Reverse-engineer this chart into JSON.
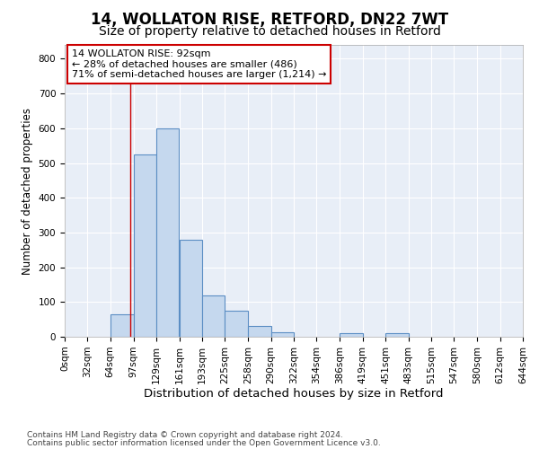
{
  "title1": "14, WOLLATON RISE, RETFORD, DN22 7WT",
  "title2": "Size of property relative to detached houses in Retford",
  "xlabel": "Distribution of detached houses by size in Retford",
  "ylabel": "Number of detached properties",
  "footnote1": "Contains HM Land Registry data © Crown copyright and database right 2024.",
  "footnote2": "Contains public sector information licensed under the Open Government Licence v3.0.",
  "annotation_line1": "14 WOLLATON RISE: 92sqm",
  "annotation_line2": "← 28% of detached houses are smaller (486)",
  "annotation_line3": "71% of semi-detached houses are larger (1,214) →",
  "property_size": 92,
  "bin_edges": [
    0,
    32,
    64,
    97,
    129,
    161,
    193,
    225,
    258,
    290,
    322,
    354,
    386,
    419,
    451,
    483,
    515,
    547,
    580,
    612,
    644
  ],
  "bar_heights": [
    0,
    0,
    65,
    525,
    600,
    280,
    120,
    75,
    30,
    13,
    0,
    0,
    10,
    0,
    10,
    0,
    0,
    0,
    0,
    0
  ],
  "bar_color": "#c5d8ee",
  "bar_edge_color": "#5b8ec4",
  "vline_color": "#cc0000",
  "box_edge_color": "#cc0000",
  "background_color": "#e8eef7",
  "ylim": [
    0,
    840
  ],
  "yticks": [
    0,
    100,
    200,
    300,
    400,
    500,
    600,
    700,
    800
  ],
  "grid_color": "#ffffff",
  "title1_fontsize": 12,
  "title2_fontsize": 10,
  "xlabel_fontsize": 9.5,
  "ylabel_fontsize": 8.5,
  "tick_fontsize": 7.5,
  "annotation_fontsize": 8,
  "footnote_fontsize": 6.5
}
